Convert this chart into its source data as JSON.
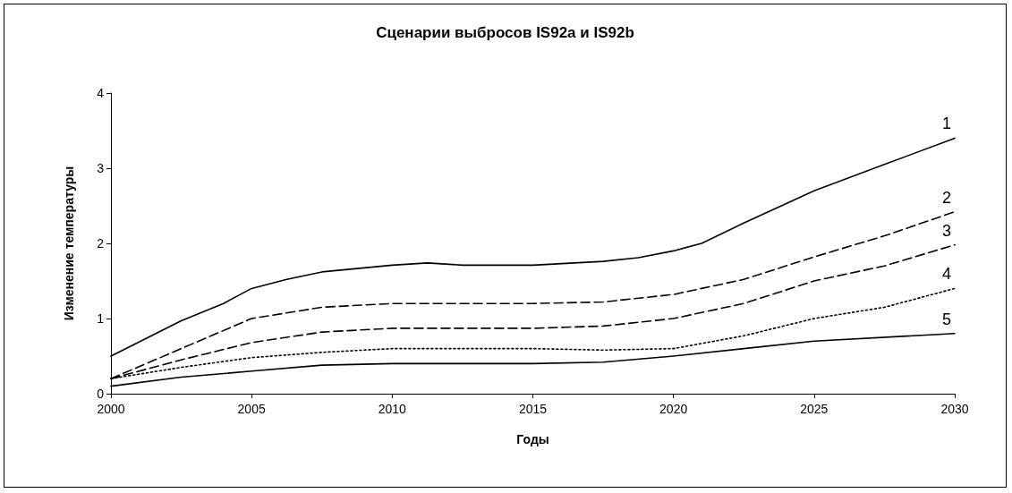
{
  "chart_data": {
    "type": "line",
    "title": "Сценарии выбросов IS92a и IS92b",
    "xlabel": "Годы",
    "ylabel": "Изменение температуры",
    "xlim": [
      2000,
      2030
    ],
    "xticks": [
      2000,
      2005,
      2010,
      2015,
      2020,
      2025,
      2030
    ],
    "ylim": [
      0,
      4
    ],
    "yticks": [
      0,
      1,
      2,
      3,
      4
    ],
    "grid": false,
    "legend": false,
    "marker": "none",
    "series": [
      {
        "name": "1",
        "color": "#000000",
        "line_style": "solid",
        "x": [
          2000,
          2002.5,
          2004,
          2005,
          2006.25,
          2007.5,
          2010,
          2011.25,
          2012.5,
          2015,
          2017.5,
          2018.75,
          2020,
          2021,
          2022.5,
          2025,
          2027.5,
          2030
        ],
        "values": [
          0.5,
          0.97,
          1.2,
          1.4,
          1.52,
          1.62,
          1.71,
          1.74,
          1.71,
          1.71,
          1.76,
          1.81,
          1.9,
          2.0,
          2.27,
          2.7,
          3.05,
          3.4
        ]
      },
      {
        "name": "2",
        "color": "#000000",
        "line_style": "dashed",
        "x": [
          2000,
          2002.5,
          2005,
          2007.5,
          2010,
          2015,
          2017.5,
          2020,
          2022.5,
          2025,
          2027.5,
          2030
        ],
        "values": [
          0.2,
          0.6,
          1.0,
          1.15,
          1.2,
          1.2,
          1.22,
          1.32,
          1.52,
          1.82,
          2.1,
          2.42
        ]
      },
      {
        "name": "3",
        "color": "#000000",
        "line_style": "dashed",
        "x": [
          2000,
          2002.5,
          2005,
          2007.5,
          2010,
          2015,
          2017.5,
          2020,
          2022.5,
          2025,
          2027.5,
          2030
        ],
        "values": [
          0.2,
          0.45,
          0.68,
          0.82,
          0.87,
          0.87,
          0.9,
          1.0,
          1.2,
          1.5,
          1.7,
          1.98
        ]
      },
      {
        "name": "4",
        "color": "#000000",
        "line_style": "dotted",
        "x": [
          2000,
          2002.5,
          2005,
          2007.5,
          2010,
          2015,
          2017.5,
          2020,
          2022.5,
          2025,
          2027.5,
          2030
        ],
        "values": [
          0.2,
          0.35,
          0.48,
          0.55,
          0.6,
          0.6,
          0.58,
          0.6,
          0.77,
          1.0,
          1.15,
          1.4
        ]
      },
      {
        "name": "5",
        "color": "#000000",
        "line_style": "solid",
        "x": [
          2000,
          2002.5,
          2005,
          2007.5,
          2010,
          2015,
          2017.5,
          2020,
          2022.5,
          2025,
          2030
        ],
        "values": [
          0.1,
          0.22,
          0.3,
          0.38,
          0.4,
          0.4,
          0.42,
          0.5,
          0.6,
          0.7,
          0.8
        ]
      }
    ]
  }
}
